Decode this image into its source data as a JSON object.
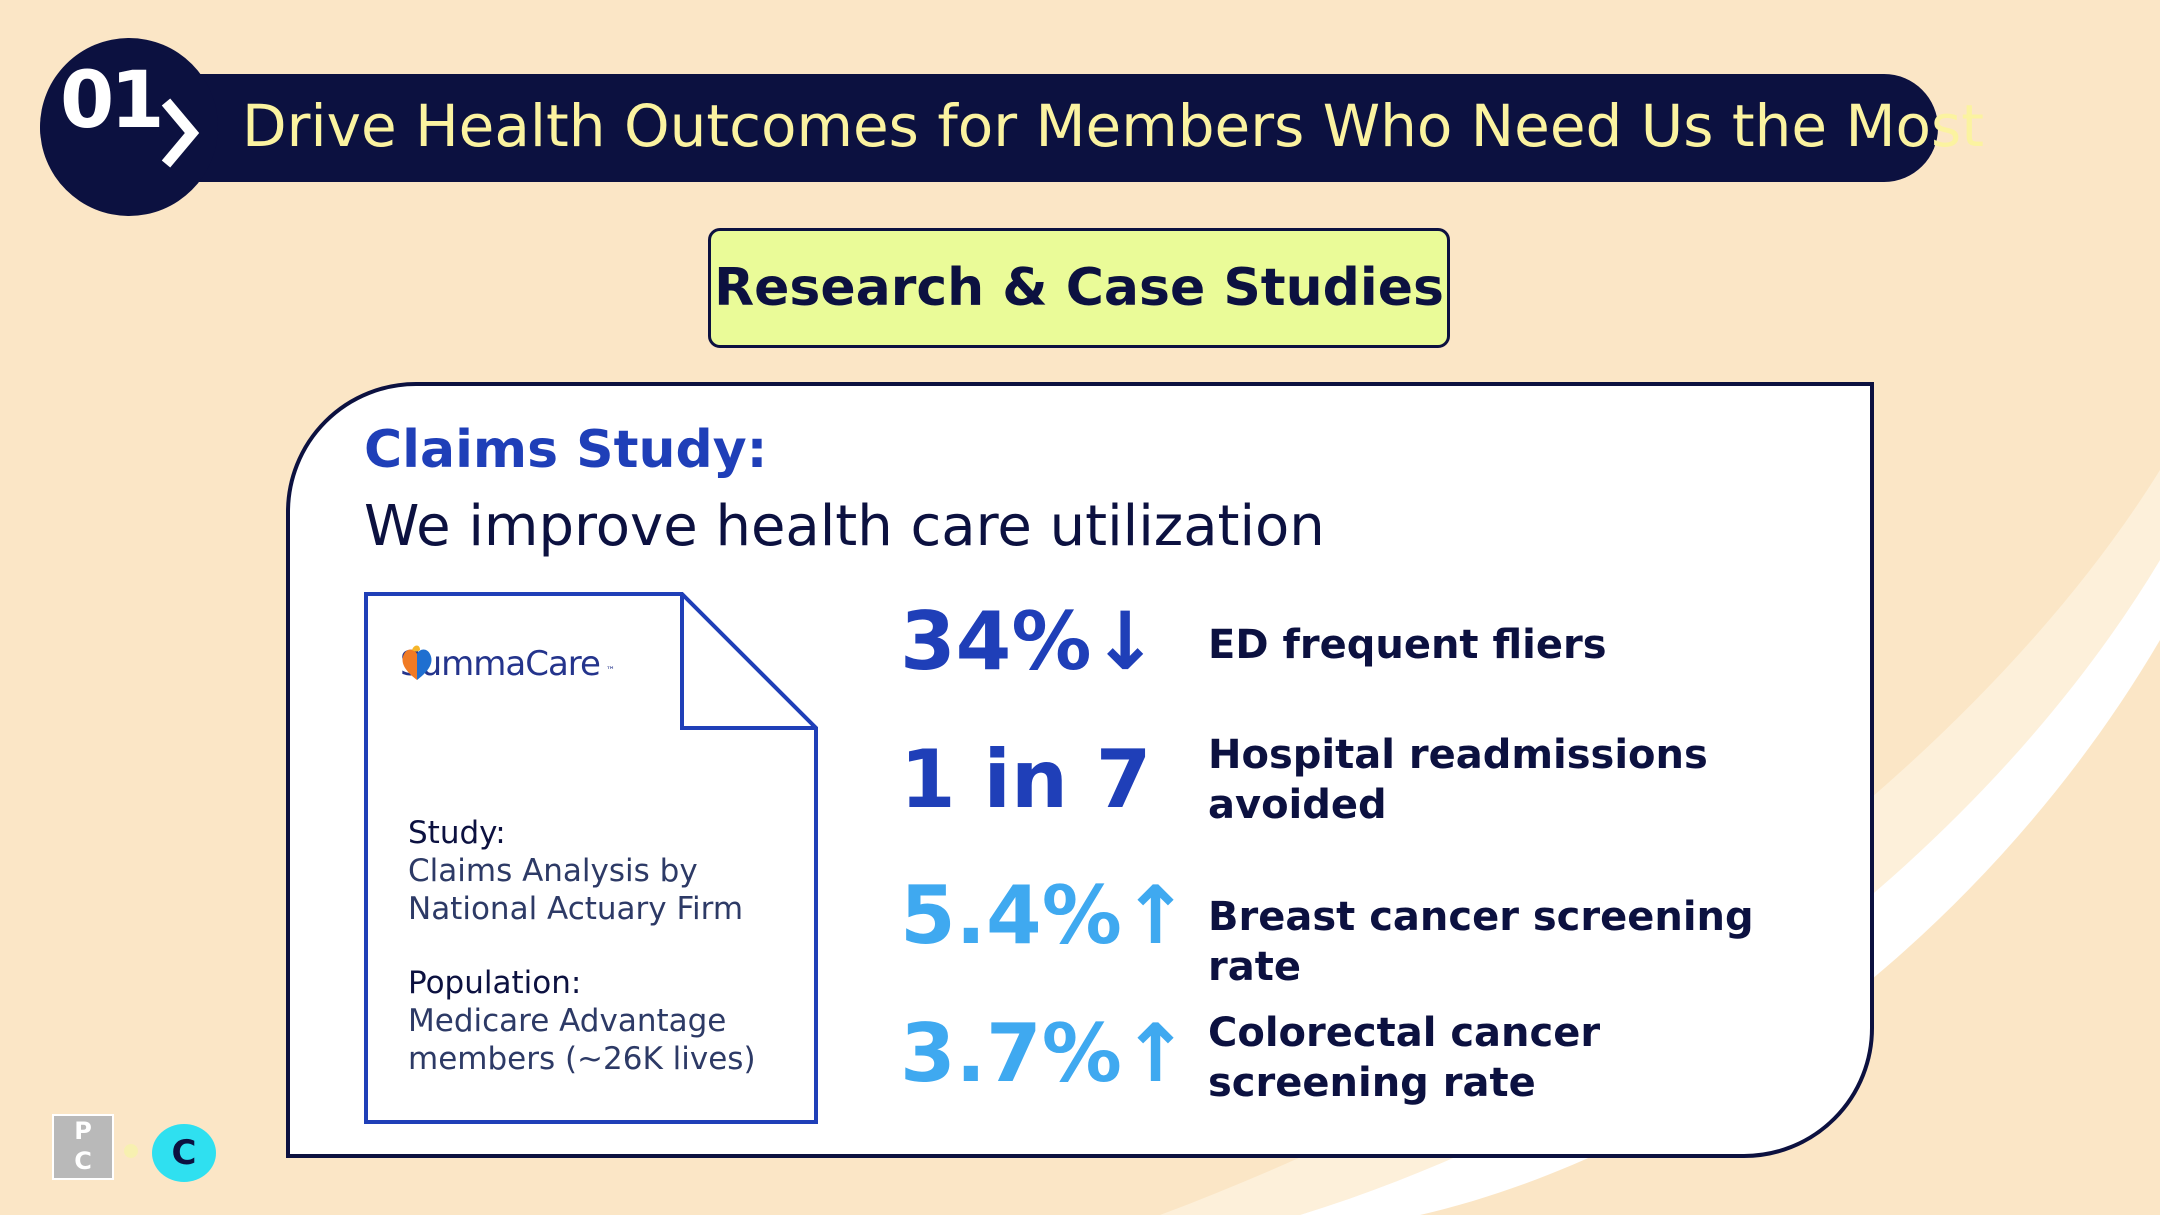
{
  "header": {
    "number": "01",
    "title": "Drive Health Outcomes for Members Who Need Us the Most"
  },
  "badge": {
    "label": "Research & Case Studies"
  },
  "card": {
    "heading": "Claims Study:",
    "subheading": "We improve health care utilization",
    "document": {
      "logo_text": "SummaCare",
      "study_label": "Study:",
      "study_value_line1": "Claims Analysis by",
      "study_value_line2": "National Actuary Firm",
      "population_label": "Population:",
      "population_value_line1": "Medicare Advantage",
      "population_value_line2": "members (~26K lives)"
    },
    "stats": [
      {
        "value": "34%↓",
        "label": "ED frequent fliers",
        "color": "#1f3fb8"
      },
      {
        "value": "1 in 7",
        "label": "Hospital readmissions avoided",
        "color": "#1f3fb8"
      },
      {
        "value": "5.4%↑",
        "label": "Breast cancer screening rate",
        "color": "#3fa9f0"
      },
      {
        "value": "3.7%↑",
        "label": "Colorectal cancer screening rate",
        "color": "#3fa9f0"
      }
    ]
  },
  "footer": {
    "pc_logo_text": "P\nC",
    "c_logo_text": "C"
  },
  "colors": {
    "background": "#fbe6c6",
    "navy": "#0c1140",
    "header_text": "#fbf3a0",
    "badge_bg": "#eafb98",
    "primary_blue": "#1f3fb8",
    "light_blue": "#3fa9f0"
  }
}
